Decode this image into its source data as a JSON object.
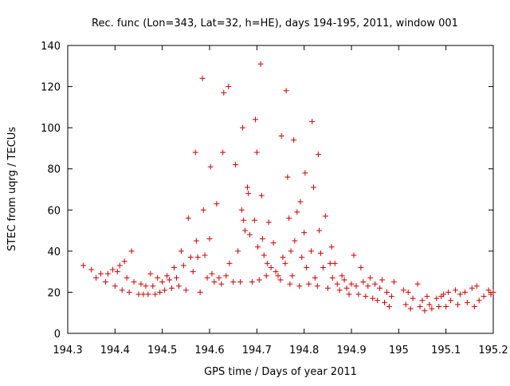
{
  "chart_data": {
    "type": "scatter",
    "title": "Rec. func (Lon=343, Lat=32, h=HE), days 194-195, 2011, window 001",
    "xlabel": "GPS time / Days of year 2011",
    "ylabel": "STEC from uqrg / TECUs",
    "xlim": [
      194.3,
      195.2
    ],
    "ylim": [
      0,
      140
    ],
    "xticks": [
      194.3,
      194.4,
      194.5,
      194.6,
      194.7,
      194.8,
      194.9,
      195,
      195.1,
      195.2
    ],
    "xtick_labels": [
      "194.3",
      "194.4",
      "194.5",
      "194.6",
      "194.7",
      "194.8",
      "194.9",
      "195",
      "195.1",
      "195.2"
    ],
    "yticks": [
      0,
      20,
      40,
      60,
      80,
      100,
      120,
      140
    ],
    "ytick_labels": [
      "0",
      "20",
      "40",
      "60",
      "80",
      "100",
      "120",
      "140"
    ],
    "marker": "+",
    "marker_color": "#cc0000",
    "points": [
      [
        194.333,
        33
      ],
      [
        194.35,
        31
      ],
      [
        194.36,
        27
      ],
      [
        194.37,
        29
      ],
      [
        194.38,
        25
      ],
      [
        194.385,
        29
      ],
      [
        194.395,
        31
      ],
      [
        194.4,
        23
      ],
      [
        194.405,
        30
      ],
      [
        194.41,
        33
      ],
      [
        194.415,
        21
      ],
      [
        194.42,
        35
      ],
      [
        194.425,
        27
      ],
      [
        194.43,
        20
      ],
      [
        194.435,
        40
      ],
      [
        194.44,
        25
      ],
      [
        194.45,
        19
      ],
      [
        194.455,
        24
      ],
      [
        194.46,
        19
      ],
      [
        194.465,
        23
      ],
      [
        194.47,
        19
      ],
      [
        194.475,
        29
      ],
      [
        194.48,
        23
      ],
      [
        194.485,
        19
      ],
      [
        194.49,
        27
      ],
      [
        194.495,
        20
      ],
      [
        194.5,
        25
      ],
      [
        194.505,
        21
      ],
      [
        194.51,
        28
      ],
      [
        194.515,
        26
      ],
      [
        194.52,
        22
      ],
      [
        194.525,
        32
      ],
      [
        194.53,
        27
      ],
      [
        194.535,
        23
      ],
      [
        194.54,
        40
      ],
      [
        194.545,
        33
      ],
      [
        194.55,
        21
      ],
      [
        194.555,
        56
      ],
      [
        194.56,
        37
      ],
      [
        194.565,
        30
      ],
      [
        194.57,
        88
      ],
      [
        194.572,
        45
      ],
      [
        194.575,
        37
      ],
      [
        194.58,
        20
      ],
      [
        194.585,
        124
      ],
      [
        194.587,
        60
      ],
      [
        194.59,
        38
      ],
      [
        194.595,
        27
      ],
      [
        194.6,
        46
      ],
      [
        194.602,
        81
      ],
      [
        194.605,
        29
      ],
      [
        194.61,
        25
      ],
      [
        194.615,
        63
      ],
      [
        194.62,
        27
      ],
      [
        194.625,
        24
      ],
      [
        194.628,
        88
      ],
      [
        194.63,
        117
      ],
      [
        194.635,
        28
      ],
      [
        194.64,
        120
      ],
      [
        194.642,
        34
      ],
      [
        194.65,
        25
      ],
      [
        194.655,
        82
      ],
      [
        194.66,
        40
      ],
      [
        194.665,
        25
      ],
      [
        194.668,
        60
      ],
      [
        194.67,
        100
      ],
      [
        194.672,
        55
      ],
      [
        194.675,
        50
      ],
      [
        194.68,
        71
      ],
      [
        194.682,
        68
      ],
      [
        194.685,
        48
      ],
      [
        194.69,
        25
      ],
      [
        194.695,
        55
      ],
      [
        194.697,
        104
      ],
      [
        194.7,
        88
      ],
      [
        194.702,
        42
      ],
      [
        194.705,
        26
      ],
      [
        194.708,
        131
      ],
      [
        194.71,
        67
      ],
      [
        194.712,
        46
      ],
      [
        194.715,
        38
      ],
      [
        194.72,
        28
      ],
      [
        194.722,
        34
      ],
      [
        194.725,
        54
      ],
      [
        194.73,
        32
      ],
      [
        194.735,
        44
      ],
      [
        194.74,
        30
      ],
      [
        194.745,
        28
      ],
      [
        194.75,
        26
      ],
      [
        194.752,
        96
      ],
      [
        194.755,
        37
      ],
      [
        194.76,
        34
      ],
      [
        194.762,
        118
      ],
      [
        194.765,
        76
      ],
      [
        194.768,
        56
      ],
      [
        194.77,
        24
      ],
      [
        194.772,
        40
      ],
      [
        194.775,
        28
      ],
      [
        194.778,
        94
      ],
      [
        194.78,
        45
      ],
      [
        194.785,
        59
      ],
      [
        194.79,
        23
      ],
      [
        194.792,
        64
      ],
      [
        194.795,
        37
      ],
      [
        194.8,
        49
      ],
      [
        194.802,
        78
      ],
      [
        194.805,
        32
      ],
      [
        194.81,
        24
      ],
      [
        194.815,
        40
      ],
      [
        194.817,
        103
      ],
      [
        194.82,
        71
      ],
      [
        194.823,
        27
      ],
      [
        194.828,
        23
      ],
      [
        194.83,
        87
      ],
      [
        194.832,
        50
      ],
      [
        194.835,
        39
      ],
      [
        194.84,
        32
      ],
      [
        194.845,
        57
      ],
      [
        194.85,
        22
      ],
      [
        194.855,
        34
      ],
      [
        194.858,
        42
      ],
      [
        194.86,
        27
      ],
      [
        194.865,
        34
      ],
      [
        194.87,
        24
      ],
      [
        194.875,
        21
      ],
      [
        194.88,
        28
      ],
      [
        194.885,
        26
      ],
      [
        194.89,
        22
      ],
      [
        194.895,
        19
      ],
      [
        194.9,
        24
      ],
      [
        194.905,
        38
      ],
      [
        194.91,
        23
      ],
      [
        194.915,
        19
      ],
      [
        194.92,
        32
      ],
      [
        194.925,
        25
      ],
      [
        194.93,
        18
      ],
      [
        194.935,
        23
      ],
      [
        194.94,
        27
      ],
      [
        194.945,
        17
      ],
      [
        194.95,
        24
      ],
      [
        194.955,
        16
      ],
      [
        194.96,
        22
      ],
      [
        194.965,
        26
      ],
      [
        194.97,
        15
      ],
      [
        194.975,
        20
      ],
      [
        194.98,
        13
      ],
      [
        194.985,
        18
      ],
      [
        194.99,
        25
      ],
      [
        195.01,
        21
      ],
      [
        195.015,
        14
      ],
      [
        195.02,
        20
      ],
      [
        195.025,
        12
      ],
      [
        195.03,
        17
      ],
      [
        195.04,
        24
      ],
      [
        195.045,
        13
      ],
      [
        195.05,
        16
      ],
      [
        195.055,
        11
      ],
      [
        195.06,
        18
      ],
      [
        195.065,
        14
      ],
      [
        195.07,
        12
      ],
      [
        195.08,
        17
      ],
      [
        195.085,
        13
      ],
      [
        195.09,
        18
      ],
      [
        195.095,
        19
      ],
      [
        195.1,
        13
      ],
      [
        195.105,
        20
      ],
      [
        195.11,
        16
      ],
      [
        195.12,
        21
      ],
      [
        195.125,
        14
      ],
      [
        195.13,
        19
      ],
      [
        195.14,
        20
      ],
      [
        195.145,
        15
      ],
      [
        195.155,
        22
      ],
      [
        195.16,
        13
      ],
      [
        195.165,
        23
      ],
      [
        195.17,
        16
      ],
      [
        195.18,
        18
      ],
      [
        195.19,
        21
      ],
      [
        195.195,
        19
      ],
      [
        195.2,
        20
      ]
    ]
  }
}
